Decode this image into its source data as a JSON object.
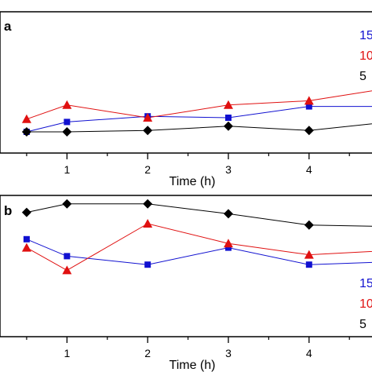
{
  "chart_data": [
    {
      "type": "line",
      "panel_label": "a",
      "xlabel": "Time (h)",
      "x_ticks": [
        "1",
        "2",
        "3",
        "4"
      ],
      "xlim": [
        0.17,
        4.78
      ],
      "ylim": [
        0,
        10
      ],
      "legend_placement": "top-right",
      "series": [
        {
          "name": "15",
          "color": "#1010d0",
          "marker": "square",
          "x": [
            0.5,
            1,
            2,
            3,
            4,
            5
          ],
          "y": [
            1.5,
            2.2,
            2.6,
            2.5,
            3.3,
            3.3
          ]
        },
        {
          "name": "10",
          "color": "#e01010",
          "marker": "triangle",
          "x": [
            0.5,
            1,
            2,
            3,
            4,
            5
          ],
          "y": [
            2.4,
            3.4,
            2.5,
            3.4,
            3.7,
            4.6
          ]
        },
        {
          "name": "5",
          "color": "#000000",
          "marker": "diamond",
          "x": [
            0.5,
            1,
            2,
            3,
            4,
            5
          ],
          "y": [
            1.5,
            1.5,
            1.6,
            1.9,
            1.6,
            2.2
          ]
        }
      ]
    },
    {
      "type": "line",
      "panel_label": "b",
      "xlabel": "Time (h)",
      "x_ticks": [
        "1",
        "2",
        "3",
        "4"
      ],
      "xlim": [
        0.17,
        4.78
      ],
      "ylim": [
        0,
        10
      ],
      "legend_placement": "bottom-right",
      "series": [
        {
          "name": "15",
          "color": "#1010d0",
          "marker": "square",
          "x": [
            0.5,
            1,
            2,
            3,
            4,
            5
          ],
          "y": [
            6.9,
            5.7,
            5.1,
            6.3,
            5.1,
            5.3
          ]
        },
        {
          "name": "10",
          "color": "#e01010",
          "marker": "triangle",
          "x": [
            0.5,
            1,
            2,
            3,
            4,
            5
          ],
          "y": [
            6.3,
            4.7,
            8.0,
            6.6,
            5.8,
            6.1
          ]
        },
        {
          "name": "5",
          "color": "#000000",
          "marker": "diamond",
          "x": [
            0.5,
            1,
            2,
            3,
            4,
            5
          ],
          "y": [
            8.8,
            9.4,
            9.4,
            8.7,
            7.9,
            7.8
          ]
        }
      ]
    }
  ]
}
